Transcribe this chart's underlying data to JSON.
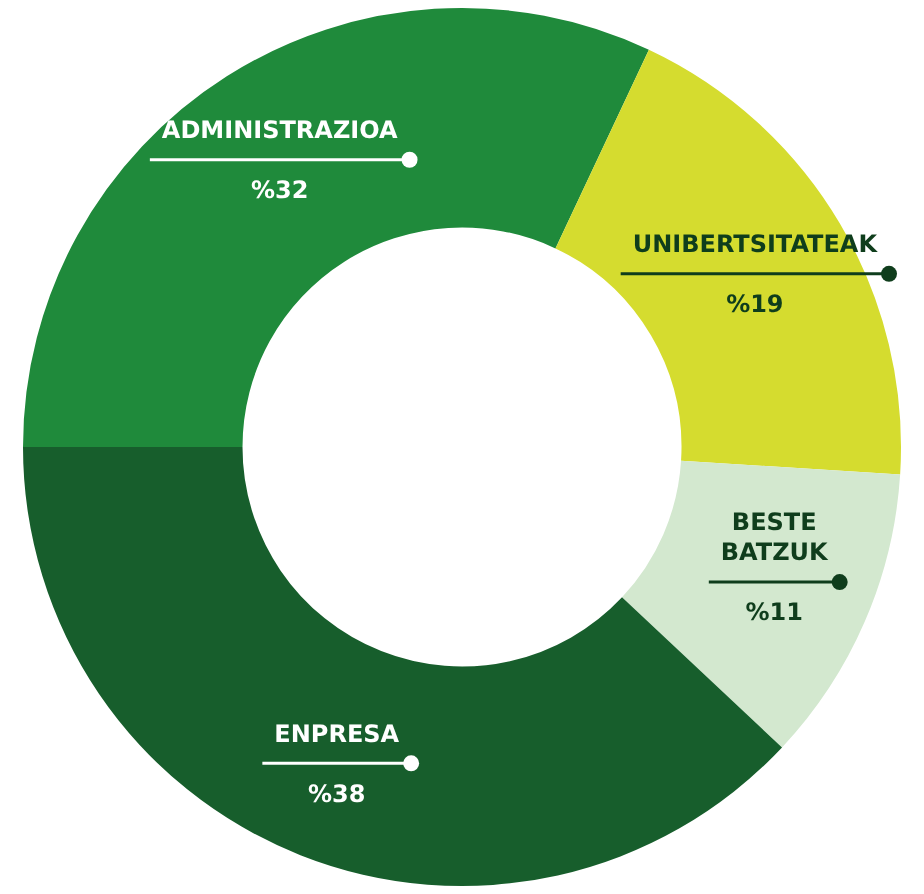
{
  "chart_data": {
    "type": "donut",
    "categories": [
      "ADMINISTRAZIOA",
      "UNIBERTSITATEAK",
      "BESTE BATZUK",
      "ENPRESA"
    ],
    "values": [
      32,
      19,
      11,
      38
    ],
    "value_labels": [
      "%32",
      "%19",
      "%11",
      "%38"
    ],
    "colors": [
      "#1f8a3b",
      "#d5dc2f",
      "#d3e8cf",
      "#175e2c"
    ],
    "legend": false
  }
}
